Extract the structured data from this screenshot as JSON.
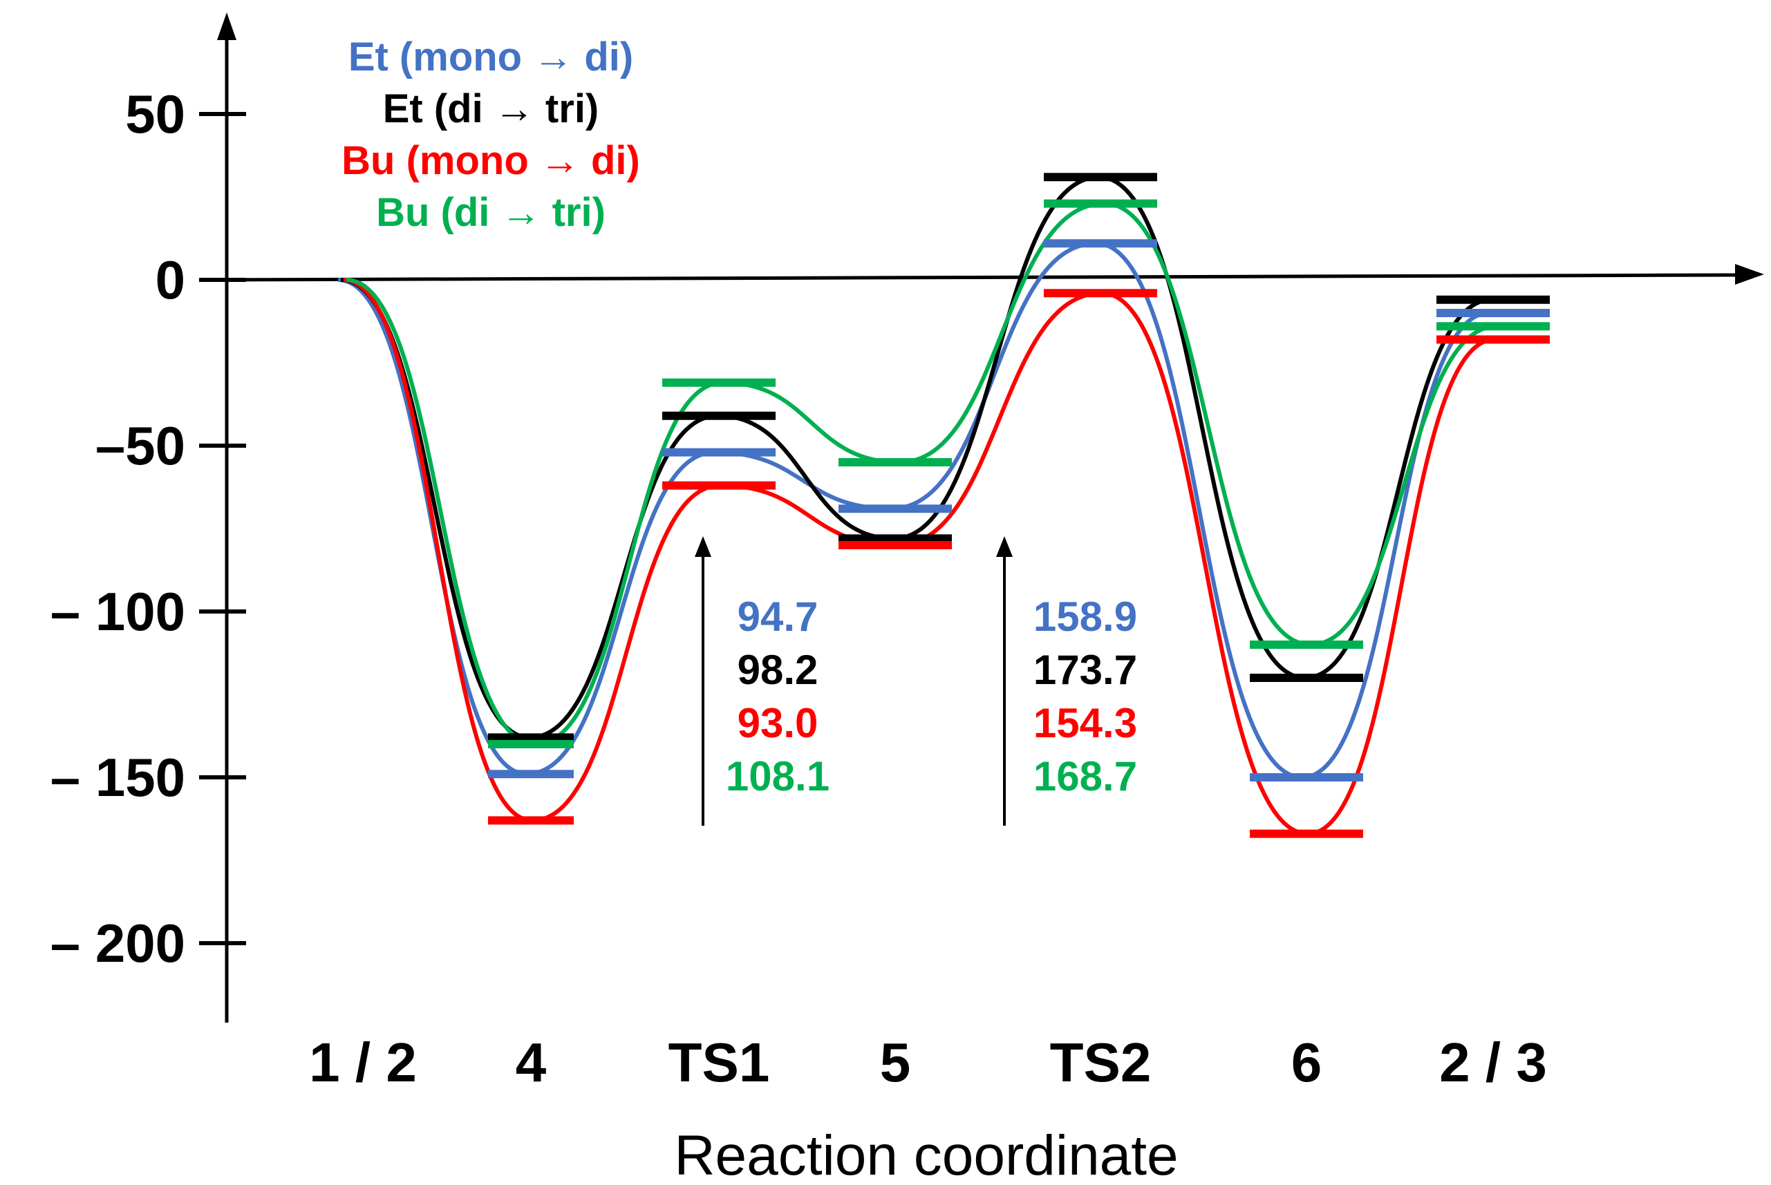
{
  "chart_data": {
    "type": "line",
    "title": "",
    "xlabel": "Reaction coordinate",
    "ylabel": "",
    "ylim": [
      -225,
      80
    ],
    "yticks": [
      {
        "value": 50,
        "label": "50"
      },
      {
        "value": 0,
        "label": "0"
      },
      {
        "value": -50,
        "label": "–50"
      },
      {
        "value": -100,
        "label": "– 100"
      },
      {
        "value": -150,
        "label": "– 150"
      },
      {
        "value": -200,
        "label": "– 200"
      }
    ],
    "categories": [
      "1 / 2",
      "4",
      "TS1",
      "5",
      "TS2",
      "6",
      "2 / 3"
    ],
    "series": [
      {
        "name": "Et (mono → di)",
        "color": "#4472c4",
        "values": [
          0,
          -149,
          -52,
          -69,
          11,
          -150,
          -10
        ]
      },
      {
        "name": "Et (di → tri)",
        "color": "#000000",
        "values": [
          0,
          -138,
          -41,
          -78,
          31,
          -120,
          -6
        ]
      },
      {
        "name": "Bu (mono → di)",
        "color": "#ff0000",
        "values": [
          0,
          -163,
          -62,
          -80,
          -4,
          -167,
          -18
        ]
      },
      {
        "name": "Bu (di → tri)",
        "color": "#00b050",
        "values": [
          0,
          -140,
          -31,
          -55,
          23,
          -110,
          -14
        ]
      }
    ],
    "barriers": [
      {
        "from": "4",
        "to": "TS1",
        "values": [
          "94.7",
          "98.2",
          "93.0",
          "108.1"
        ]
      },
      {
        "from": "5",
        "to": "TS2",
        "values": [
          "158.9",
          "173.7",
          "154.3",
          "168.7"
        ]
      }
    ],
    "legend": "top-left"
  }
}
